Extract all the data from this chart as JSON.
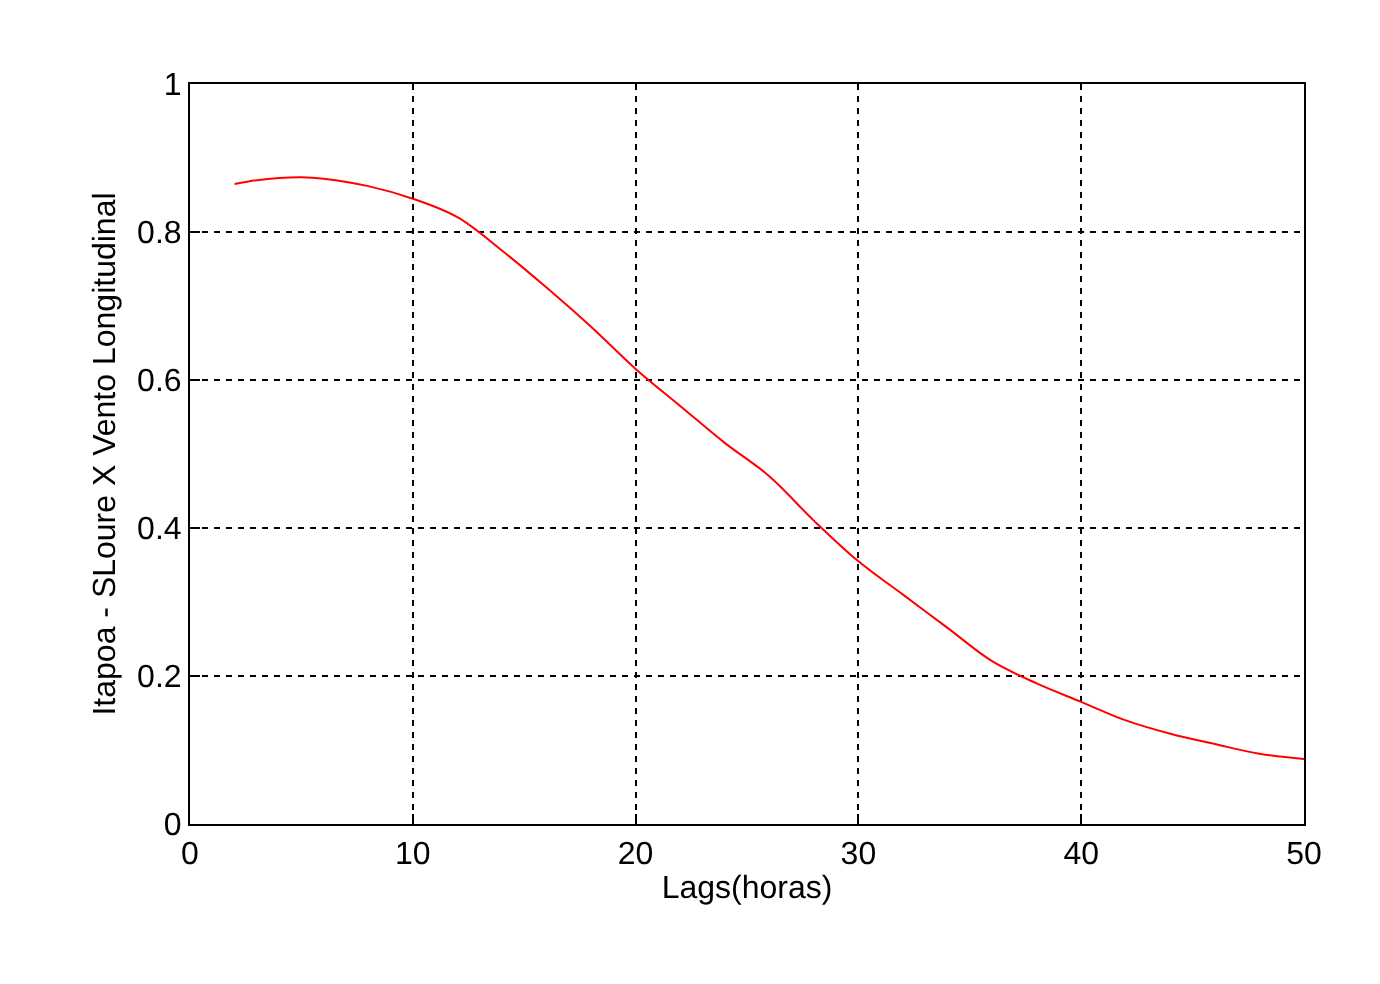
{
  "chart_data": {
    "type": "line",
    "xlabel": "Lags(horas)",
    "ylabel": "Itapoa - SLoure X Vento Longitudinal",
    "x": [
      2,
      3,
      4,
      5,
      6,
      8,
      10,
      12,
      14,
      16,
      18,
      20,
      22,
      24,
      26,
      28,
      30,
      32,
      34,
      36,
      38,
      40,
      42,
      44,
      46,
      48,
      50
    ],
    "series": [
      {
        "color": "#ff0000",
        "values": [
          0.865,
          0.87,
          0.873,
          0.874,
          0.872,
          0.862,
          0.845,
          0.82,
          0.775,
          0.725,
          0.672,
          0.615,
          0.565,
          0.515,
          0.47,
          0.41,
          0.355,
          0.31,
          0.265,
          0.22,
          0.19,
          0.165,
          0.14,
          0.122,
          0.108,
          0.095,
          0.088
        ]
      }
    ],
    "xlim": [
      0,
      50
    ],
    "xticks": [
      0,
      10,
      20,
      30,
      40,
      50
    ],
    "ylim": [
      0,
      1
    ],
    "yticks": [
      0,
      0.2,
      0.4,
      0.6,
      0.8,
      1
    ],
    "grid": true,
    "line_style": "solid",
    "marker": "none"
  }
}
